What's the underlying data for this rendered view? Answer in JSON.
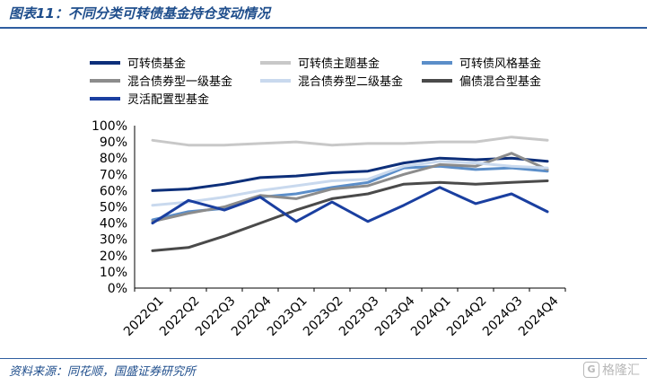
{
  "header": {
    "title": "图表11：不同分类可转债基金持仓变动情况"
  },
  "footer": {
    "source": "资料来源：同花顺，国盛证券研究所",
    "watermark": "格隆汇",
    "watermark_glyph": "G"
  },
  "chart_data": {
    "type": "line",
    "title": "",
    "xlabel": "",
    "ylabel": "",
    "ylim": [
      0,
      100
    ],
    "y_ticks": [
      "0%",
      "10%",
      "20%",
      "30%",
      "40%",
      "50%",
      "60%",
      "70%",
      "80%",
      "90%",
      "100%"
    ],
    "categories": [
      "2022Q1",
      "2022Q2",
      "2022Q3",
      "2022Q4",
      "2023Q1",
      "2023Q2",
      "2023Q3",
      "2023Q4",
      "2024Q1",
      "2024Q2",
      "2024Q3",
      "2024Q4"
    ],
    "grid": false,
    "legend_position": "top",
    "series": [
      {
        "name": "可转债基金",
        "color": "#0d2f7a",
        "width": 3,
        "values": [
          60,
          61,
          64,
          68,
          69,
          71,
          72,
          77,
          80,
          79,
          80,
          78
        ]
      },
      {
        "name": "可转债主题基金",
        "color": "#c8c8c8",
        "width": 3,
        "values": [
          91,
          88,
          88,
          89,
          90,
          88,
          89,
          89,
          90,
          90,
          93,
          91
        ]
      },
      {
        "name": "可转债风格基金",
        "color": "#5b8ec9",
        "width": 3,
        "values": [
          42,
          47,
          49,
          56,
          58,
          62,
          65,
          74,
          75,
          73,
          74,
          72
        ]
      },
      {
        "name": "混合债券型一级基金",
        "color": "#8c8c8c",
        "width": 3,
        "values": [
          41,
          46,
          50,
          57,
          55,
          61,
          63,
          70,
          76,
          75,
          83,
          73
        ]
      },
      {
        "name": "混合债券型二级基金",
        "color": "#c9d9ee",
        "width": 3,
        "values": [
          51,
          53,
          56,
          60,
          63,
          66,
          67,
          75,
          78,
          77,
          75,
          74
        ]
      },
      {
        "name": "偏债混合型基金",
        "color": "#4a4a4a",
        "width": 3,
        "values": [
          23,
          25,
          32,
          40,
          48,
          55,
          58,
          64,
          65,
          64,
          65,
          66
        ]
      },
      {
        "name": "灵活配置型基金",
        "color": "#1a3fa0",
        "width": 3,
        "values": [
          40,
          54,
          48,
          56,
          41,
          53,
          41,
          51,
          62,
          52,
          58,
          47
        ]
      }
    ]
  }
}
